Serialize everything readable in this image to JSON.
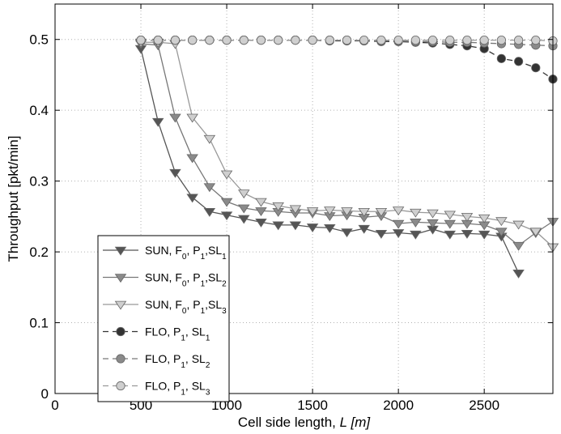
{
  "chart_data": {
    "type": "line",
    "title": "",
    "xlabel": "Cell side length, ",
    "xlabel_italic": "L [m]",
    "ylabel": "Throughput [pkt/min]",
    "xlim": [
      0,
      2900
    ],
    "ylim": [
      0,
      0.55
    ],
    "xticks": [
      0,
      500,
      1000,
      1500,
      2000,
      2500
    ],
    "xtick_labels": [
      "0",
      "500",
      "1000",
      "1500",
      "2000",
      "2500"
    ],
    "yticks": [
      0,
      0.1,
      0.2,
      0.3,
      0.4,
      0.5
    ],
    "ytick_labels": [
      "0",
      "0.1",
      "0.2",
      "0.3",
      "0.4",
      "0.5"
    ],
    "grid": true,
    "legend_position": "bottom-left",
    "x": [
      500,
      600,
      700,
      800,
      900,
      1000,
      1100,
      1200,
      1300,
      1400,
      1500,
      1600,
      1700,
      1800,
      1900,
      2000,
      2100,
      2200,
      2300,
      2400,
      2500,
      2600,
      2700,
      2800,
      2900
    ],
    "series": [
      {
        "legend_parts": [
          [
            "SUN, F",
            ""
          ],
          [
            "0",
            "sub"
          ],
          [
            ", P",
            ""
          ],
          [
            "1",
            "sub"
          ],
          [
            ",SL",
            ""
          ],
          [
            "1",
            "sub"
          ]
        ],
        "style": "solid",
        "marker": "triangle-down",
        "color": "#555555",
        "fill": "#555555",
        "values": [
          0.487,
          0.384,
          0.312,
          0.277,
          0.257,
          0.252,
          0.247,
          0.242,
          0.238,
          0.238,
          0.235,
          0.234,
          0.228,
          0.233,
          0.226,
          0.227,
          0.225,
          0.232,
          0.225,
          0.226,
          0.225,
          0.222,
          0.17,
          null,
          null
        ]
      },
      {
        "legend_parts": [
          [
            "SUN, F",
            ""
          ],
          [
            "0",
            "sub"
          ],
          [
            ", P",
            ""
          ],
          [
            "1",
            "sub"
          ],
          [
            ",SL",
            ""
          ],
          [
            "2",
            "sub"
          ]
        ],
        "style": "solid",
        "marker": "triangle-down",
        "color": "#777777",
        "fill": "#8a8a8a",
        "values": [
          0.494,
          0.492,
          0.39,
          0.333,
          0.292,
          0.271,
          0.262,
          0.258,
          0.257,
          0.255,
          0.255,
          0.251,
          0.252,
          0.249,
          0.251,
          0.24,
          0.242,
          0.241,
          0.24,
          0.24,
          0.238,
          0.229,
          0.209,
          0.227,
          0.243
        ]
      },
      {
        "legend_parts": [
          [
            "SUN, F",
            ""
          ],
          [
            "0",
            "sub"
          ],
          [
            ", P",
            ""
          ],
          [
            "1",
            "sub"
          ],
          [
            ",SL",
            ""
          ],
          [
            "3",
            "sub"
          ]
        ],
        "style": "solid",
        "marker": "triangle-down",
        "color": "#999999",
        "fill": "#cfcfcf",
        "values": [
          0.496,
          0.496,
          0.494,
          0.39,
          0.36,
          0.31,
          0.283,
          0.271,
          0.265,
          0.261,
          0.258,
          0.259,
          0.258,
          0.257,
          0.257,
          0.259,
          0.256,
          0.255,
          0.253,
          0.25,
          0.248,
          0.244,
          0.239,
          0.229,
          0.207
        ]
      },
      {
        "legend_parts": [
          [
            "FLO, P",
            ""
          ],
          [
            "1",
            "sub"
          ],
          [
            ", SL",
            ""
          ],
          [
            "1",
            "sub"
          ]
        ],
        "style": "dashed",
        "marker": "circle",
        "color": "#333333",
        "fill": "#333333",
        "values": [
          0.499,
          0.499,
          0.499,
          0.499,
          0.499,
          0.499,
          0.499,
          0.499,
          0.499,
          0.499,
          0.499,
          0.498,
          0.498,
          0.498,
          0.497,
          0.497,
          0.496,
          0.495,
          0.493,
          0.491,
          0.487,
          0.473,
          0.469,
          0.46,
          0.444
        ]
      },
      {
        "legend_parts": [
          [
            "FLO, P",
            ""
          ],
          [
            "1",
            "sub"
          ],
          [
            ", SL",
            ""
          ],
          [
            "2",
            "sub"
          ]
        ],
        "style": "dashed",
        "marker": "circle",
        "color": "#777777",
        "fill": "#8a8a8a",
        "values": [
          0.499,
          0.499,
          0.499,
          0.499,
          0.499,
          0.499,
          0.499,
          0.499,
          0.499,
          0.499,
          0.499,
          0.499,
          0.499,
          0.498,
          0.498,
          0.498,
          0.497,
          0.497,
          0.496,
          0.496,
          0.495,
          0.494,
          0.493,
          0.492,
          0.491
        ]
      },
      {
        "legend_parts": [
          [
            "FLO, P",
            ""
          ],
          [
            "1",
            "sub"
          ],
          [
            ", SL",
            ""
          ],
          [
            "3",
            "sub"
          ]
        ],
        "style": "dashed",
        "marker": "circle",
        "color": "#999999",
        "fill": "#cfcfcf",
        "values": [
          0.499,
          0.499,
          0.499,
          0.499,
          0.499,
          0.499,
          0.499,
          0.499,
          0.499,
          0.499,
          0.499,
          0.499,
          0.499,
          0.499,
          0.499,
          0.499,
          0.499,
          0.499,
          0.499,
          0.499,
          0.499,
          0.499,
          0.499,
          0.499,
          0.498
        ]
      }
    ]
  }
}
